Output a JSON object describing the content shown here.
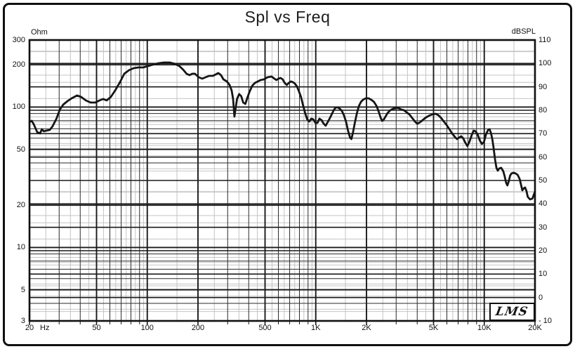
{
  "title": "Spl vs Freq",
  "branding": {
    "logo_text": "LMS"
  },
  "colors": {
    "background": "#ffffff",
    "frame": "#101010",
    "grid_major": "#1a1a1a",
    "grid_minor_black": "#2a2a2a",
    "grid_minor_gray": "#c4c4c4",
    "curve": "#151515"
  },
  "chart_data": {
    "type": "line",
    "title": "Spl vs Freq",
    "grid": true,
    "legend": "none",
    "x_axis": {
      "unit_label": "Hz",
      "scale": "log",
      "min": 20,
      "max": 20000,
      "tick_values": [
        20,
        50,
        100,
        200,
        500,
        1000,
        2000,
        5000,
        10000,
        20000
      ],
      "tick_labels": [
        "20",
        "50",
        "100",
        "200",
        "500",
        "1K",
        "2K",
        "5K",
        "10K",
        "20K"
      ]
    },
    "y_axis_left": {
      "unit_label": "Ohm",
      "scale": "log",
      "min": 3,
      "max": 300,
      "tick_values": [
        300,
        200,
        100,
        50,
        20,
        10,
        5,
        3
      ],
      "tick_labels": [
        "300",
        "200",
        "100",
        "50",
        "20",
        "10",
        "5",
        "3"
      ]
    },
    "y_axis_right": {
      "unit_label": "dBSPL",
      "scale": "linear",
      "min": -10,
      "max": 110,
      "tick_values": [
        110,
        100,
        90,
        80,
        70,
        60,
        50,
        40,
        30,
        20,
        10,
        0,
        -10
      ],
      "tick_labels": [
        "110",
        "100",
        "90",
        "80",
        "70",
        "60",
        "50",
        "40",
        "30",
        "20",
        "10",
        "0",
        "- 10"
      ]
    },
    "series": [
      {
        "name": "SPL",
        "axis": "right",
        "points": [
          [
            20,
            74.9
          ],
          [
            20.6,
            75.5
          ],
          [
            21.2,
            74.0
          ],
          [
            22.2,
            70.7
          ],
          [
            23.1,
            70.1
          ],
          [
            23.7,
            71.9
          ],
          [
            24.3,
            71.0
          ],
          [
            25.2,
            71.3
          ],
          [
            26.4,
            71.6
          ],
          [
            27.4,
            73.1
          ],
          [
            28.9,
            76.4
          ],
          [
            30.3,
            80.3
          ],
          [
            31.7,
            82.4
          ],
          [
            33.6,
            83.9
          ],
          [
            35.6,
            85.1
          ],
          [
            38.3,
            86.3
          ],
          [
            40.5,
            85.7
          ],
          [
            43.2,
            84.2
          ],
          [
            46.1,
            83.3
          ],
          [
            49.2,
            83.3
          ],
          [
            52.1,
            84.2
          ],
          [
            54.7,
            84.8
          ],
          [
            57.4,
            84.2
          ],
          [
            60.8,
            85.7
          ],
          [
            64.4,
            88.4
          ],
          [
            68.9,
            92.0
          ],
          [
            73,
            95.6
          ],
          [
            77.9,
            97.1
          ],
          [
            83.2,
            98.0
          ],
          [
            88.8,
            98.3
          ],
          [
            94.8,
            98.3
          ],
          [
            101,
            98.9
          ],
          [
            108,
            99.5
          ],
          [
            117,
            100.1
          ],
          [
            126,
            100.4
          ],
          [
            136,
            100.4
          ],
          [
            146,
            99.8
          ],
          [
            155,
            98.9
          ],
          [
            163,
            97.4
          ],
          [
            171,
            95.6
          ],
          [
            178,
            95.0
          ],
          [
            185,
            95.6
          ],
          [
            192,
            95.6
          ],
          [
            202,
            94.1
          ],
          [
            212,
            93.5
          ],
          [
            222,
            94.1
          ],
          [
            233,
            94.7
          ],
          [
            245,
            94.7
          ],
          [
            255,
            95.3
          ],
          [
            264,
            95.9
          ],
          [
            274,
            95.0
          ],
          [
            283,
            93.2
          ],
          [
            297,
            92.3
          ],
          [
            308,
            90.8
          ],
          [
            317,
            88.4
          ],
          [
            323,
            84.8
          ],
          [
            329,
            77.3
          ],
          [
            335,
            81.2
          ],
          [
            341,
            84.8
          ],
          [
            351,
            86.9
          ],
          [
            361,
            86.0
          ],
          [
            371,
            83.3
          ],
          [
            382,
            82.7
          ],
          [
            393,
            85.4
          ],
          [
            404,
            87.8
          ],
          [
            420,
            90.5
          ],
          [
            436,
            91.7
          ],
          [
            453,
            92.3
          ],
          [
            470,
            92.9
          ],
          [
            493,
            93.2
          ],
          [
            517,
            94.1
          ],
          [
            547,
            94.4
          ],
          [
            568,
            93.5
          ],
          [
            584,
            92.9
          ],
          [
            601,
            93.5
          ],
          [
            618,
            93.8
          ],
          [
            636,
            93.2
          ],
          [
            654,
            91.7
          ],
          [
            673,
            90.8
          ],
          [
            692,
            91.7
          ],
          [
            711,
            92.3
          ],
          [
            731,
            92.0
          ],
          [
            752,
            91.4
          ],
          [
            773,
            90.2
          ],
          [
            795,
            88.1
          ],
          [
            817,
            85.7
          ],
          [
            841,
            82.1
          ],
          [
            865,
            78.8
          ],
          [
            890,
            76.1
          ],
          [
            915,
            75.2
          ],
          [
            941,
            76.4
          ],
          [
            968,
            76.1
          ],
          [
            995,
            74.6
          ],
          [
            1023,
            74.6
          ],
          [
            1052,
            76.4
          ],
          [
            1082,
            75.8
          ],
          [
            1113,
            74.3
          ],
          [
            1145,
            73.4
          ],
          [
            1176,
            74.9
          ],
          [
            1208,
            76.4
          ],
          [
            1243,
            78.2
          ],
          [
            1278,
            80.0
          ],
          [
            1314,
            81.2
          ],
          [
            1351,
            81.2
          ],
          [
            1390,
            80.6
          ],
          [
            1429,
            79.7
          ],
          [
            1469,
            77.9
          ],
          [
            1511,
            75.2
          ],
          [
            1554,
            71.3
          ],
          [
            1598,
            68.3
          ],
          [
            1628,
            67.7
          ],
          [
            1659,
            70.1
          ],
          [
            1706,
            74.6
          ],
          [
            1755,
            78.8
          ],
          [
            1804,
            81.8
          ],
          [
            1856,
            83.6
          ],
          [
            1909,
            84.5
          ],
          [
            1981,
            85.1
          ],
          [
            2056,
            85.1
          ],
          [
            2133,
            84.5
          ],
          [
            2214,
            83.6
          ],
          [
            2297,
            81.8
          ],
          [
            2363,
            79.4
          ],
          [
            2429,
            76.7
          ],
          [
            2475,
            75.5
          ],
          [
            2522,
            75.8
          ],
          [
            2593,
            77.3
          ],
          [
            2667,
            78.8
          ],
          [
            2769,
            80.0
          ],
          [
            2875,
            80.6
          ],
          [
            2984,
            80.9
          ],
          [
            3098,
            80.9
          ],
          [
            3216,
            80.3
          ],
          [
            3338,
            80.0
          ],
          [
            3466,
            79.1
          ],
          [
            3598,
            78.2
          ],
          [
            3734,
            76.7
          ],
          [
            3877,
            75.2
          ],
          [
            3989,
            74.3
          ],
          [
            4104,
            74.6
          ],
          [
            4262,
            75.5
          ],
          [
            4466,
            76.7
          ],
          [
            4680,
            77.6
          ],
          [
            4903,
            78.2
          ],
          [
            5140,
            78.5
          ],
          [
            5338,
            77.9
          ],
          [
            5543,
            76.7
          ],
          [
            5757,
            75.2
          ],
          [
            5978,
            73.7
          ],
          [
            6208,
            71.9
          ],
          [
            6447,
            70.1
          ],
          [
            6695,
            68.6
          ],
          [
            6887,
            67.7
          ],
          [
            7086,
            68.3
          ],
          [
            7290,
            68.9
          ],
          [
            7500,
            68.0
          ],
          [
            7716,
            66.2
          ],
          [
            7938,
            64.7
          ],
          [
            8167,
            66.5
          ],
          [
            8402,
            69.2
          ],
          [
            8644,
            71.3
          ],
          [
            8893,
            71.0
          ],
          [
            9150,
            69.5
          ],
          [
            9413,
            67.1
          ],
          [
            9684,
            65.6
          ],
          [
            9963,
            66.5
          ],
          [
            10250,
            69.8
          ],
          [
            10545,
            71.6
          ],
          [
            10746,
            71.9
          ],
          [
            10950,
            70.4
          ],
          [
            11159,
            67.7
          ],
          [
            11371,
            63.8
          ],
          [
            11587,
            59.0
          ],
          [
            11808,
            55.4
          ],
          [
            12032,
            54.2
          ],
          [
            12261,
            55.1
          ],
          [
            12611,
            55.4
          ],
          [
            12971,
            53.9
          ],
          [
            13216,
            51.8
          ],
          [
            13465,
            49.1
          ],
          [
            13718,
            47.9
          ],
          [
            13977,
            49.7
          ],
          [
            14240,
            52.1
          ],
          [
            14509,
            53.0
          ],
          [
            14920,
            53.3
          ],
          [
            15343,
            53.0
          ],
          [
            15777,
            52.4
          ],
          [
            16224,
            50.6
          ],
          [
            16527,
            48.2
          ],
          [
            16835,
            45.8
          ],
          [
            17149,
            46.6
          ],
          [
            17469,
            47.0
          ],
          [
            17800,
            45.5
          ],
          [
            18124,
            43.0
          ],
          [
            18700,
            41.9
          ],
          [
            19300,
            42.3
          ],
          [
            20000,
            45.2
          ]
        ]
      }
    ]
  }
}
